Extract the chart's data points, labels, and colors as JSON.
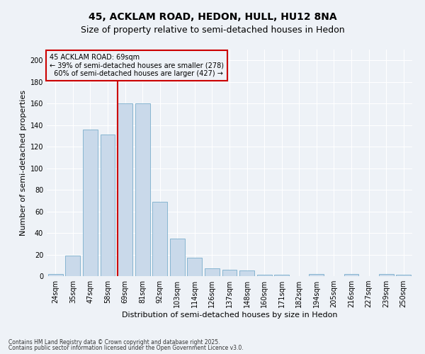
{
  "title": "45, ACKLAM ROAD, HEDON, HULL, HU12 8NA",
  "subtitle": "Size of property relative to semi-detached houses in Hedon",
  "xlabel": "Distribution of semi-detached houses by size in Hedon",
  "ylabel": "Number of semi-detached properties",
  "categories": [
    "24sqm",
    "35sqm",
    "47sqm",
    "58sqm",
    "69sqm",
    "81sqm",
    "92sqm",
    "103sqm",
    "114sqm",
    "126sqm",
    "137sqm",
    "148sqm",
    "160sqm",
    "171sqm",
    "182sqm",
    "194sqm",
    "205sqm",
    "216sqm",
    "227sqm",
    "239sqm",
    "250sqm"
  ],
  "values": [
    2,
    19,
    136,
    131,
    160,
    160,
    69,
    35,
    17,
    7,
    6,
    5,
    1,
    1,
    0,
    2,
    0,
    2,
    0,
    2,
    1
  ],
  "bar_color": "#c9d9ea",
  "bar_edge_color": "#7aaecc",
  "property_line_x": 4,
  "smaller_pct": "39%",
  "smaller_count": 278,
  "larger_pct": "60%",
  "larger_count": 427,
  "annotation_box_color": "#cc0000",
  "ylim": [
    0,
    210
  ],
  "yticks": [
    0,
    20,
    40,
    60,
    80,
    100,
    120,
    140,
    160,
    180,
    200
  ],
  "footer1": "Contains HM Land Registry data © Crown copyright and database right 2025.",
  "footer2": "Contains public sector information licensed under the Open Government Licence v3.0.",
  "background_color": "#eef2f7",
  "grid_color": "#ffffff",
  "title_fontsize": 10,
  "subtitle_fontsize": 9,
  "axis_label_fontsize": 8,
  "tick_fontsize": 7,
  "footer_fontsize": 5.5,
  "annot_fontsize": 7
}
